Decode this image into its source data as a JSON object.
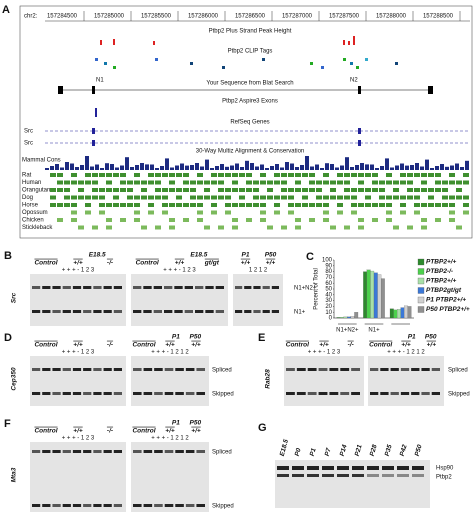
{
  "panel_a": {
    "label": "A",
    "chrom": "chr2:",
    "positions": [
      157284500,
      157285000,
      157285500,
      157286000,
      157286500,
      157287000,
      157287500,
      157288000,
      157288500
    ],
    "peak_track": "Ptbp2 Plus Strand Peak Height",
    "clip_track": "Ptbp2 CLIP Tags",
    "exon_n1": "N1",
    "exon_n2": "N2",
    "blat_track": "Your Sequence from Blat Search",
    "aspire_track": "Ptbp2 Aspire3 Exons",
    "refseq_track": "RefSeq Genes",
    "gene_1": "Src",
    "gene_2": "Src",
    "multiz_track": "30-Way Multiz Alignment & Conservation",
    "cons_track": "Mammal Cons",
    "species": [
      "Rat",
      "Human",
      "Orangutan",
      "Dog",
      "Horse",
      "Opossum",
      "Chicken",
      "Stickleback"
    ]
  },
  "panel_b": {
    "label": "B",
    "gene": "Src",
    "gels": [
      {
        "top": [
          "E18.5"
        ],
        "mid": [
          "Control",
          "+/+",
          "-/-"
        ],
        "lanes": "+  +  +  -   1  2  3"
      },
      {
        "top": [
          "E18.5"
        ],
        "mid": [
          "Control",
          "+/+",
          "gt/gt"
        ],
        "lanes": "+  +  +  -   1  2  3"
      },
      {
        "top": [
          "P1",
          "P50"
        ],
        "mid": [
          "+/+",
          "+/+"
        ],
        "lanes": "1  2  1  2"
      }
    ],
    "bands": [
      "N1+N2+",
      "N1+"
    ]
  },
  "chart_data": {
    "type": "bar",
    "label": "C",
    "ylabel": "Percent of Total",
    "categories": [
      "N1+N2+",
      "N1+",
      null
    ],
    "series": [
      {
        "name": "PTBP2+/+",
        "color": "#2d8a2d",
        "values": [
          1,
          80,
          16
        ]
      },
      {
        "name": "PTBP2-/-",
        "color": "#4cd04c",
        "values": [
          1,
          83,
          14
        ]
      },
      {
        "name": "PTBP2+/+",
        "color": "#a8e0a8",
        "values": [
          2,
          81,
          15
        ]
      },
      {
        "name": "PTBP2gt/gt",
        "color": "#3b78d8",
        "values": [
          2,
          78,
          18
        ]
      },
      {
        "name": "P1 PTBP2+/+",
        "color": "#d0d0d0",
        "values": [
          3,
          75,
          21
        ]
      },
      {
        "name": "P50 PTBP2+/+",
        "color": "#909090",
        "values": [
          10,
          68,
          20
        ]
      }
    ],
    "ylim": [
      0,
      100
    ],
    "yticks": [
      0,
      10,
      20,
      30,
      40,
      50,
      60,
      70,
      80,
      90,
      100
    ]
  },
  "panel_d": {
    "label": "D",
    "gene": "Cep350",
    "gels": [
      {
        "top": [],
        "mid": [
          "Control",
          "+/+",
          "-/-"
        ],
        "lanes": "+  +  +  -   1  2  3"
      },
      {
        "top": [
          "P1",
          "P50"
        ],
        "mid": [
          "Control",
          "+/+",
          "+/+"
        ],
        "lanes": "+  +  +  -  1  2  1  2"
      }
    ],
    "bands": [
      "Spliced",
      "Skipped"
    ]
  },
  "panel_e": {
    "label": "E",
    "gene": "Rab28",
    "gels": [
      {
        "top": [],
        "mid": [
          "Control",
          "+/+",
          "-/-"
        ],
        "lanes": "+  +  +  -  1  2  3"
      },
      {
        "top": [
          "P1",
          "P50"
        ],
        "mid": [
          "Control",
          "+/+",
          "+/+"
        ],
        "lanes": "+  +  +  -  1  2  1  2"
      }
    ],
    "bands": [
      "Spliced",
      "Skipped"
    ]
  },
  "panel_f": {
    "label": "F",
    "gene": "Mta3",
    "gels": [
      {
        "top": [],
        "mid": [
          "Control",
          "+/+",
          "-/-"
        ],
        "lanes": "+  +  +  -   1  2  3"
      },
      {
        "top": [
          "P1",
          "P50"
        ],
        "mid": [
          "Control",
          "+/+",
          "+/+"
        ],
        "lanes": "+  +  +  -  1  2  1  2"
      }
    ],
    "bands": [
      "Spliced",
      "Skipped"
    ]
  },
  "panel_g": {
    "label": "G",
    "lanes": [
      "E18.5",
      "P0",
      "P1",
      "P7",
      "P14",
      "P21",
      "P28",
      "P35",
      "P42",
      "P50"
    ],
    "bands": [
      "Hsp90",
      "Ptbp2"
    ]
  }
}
